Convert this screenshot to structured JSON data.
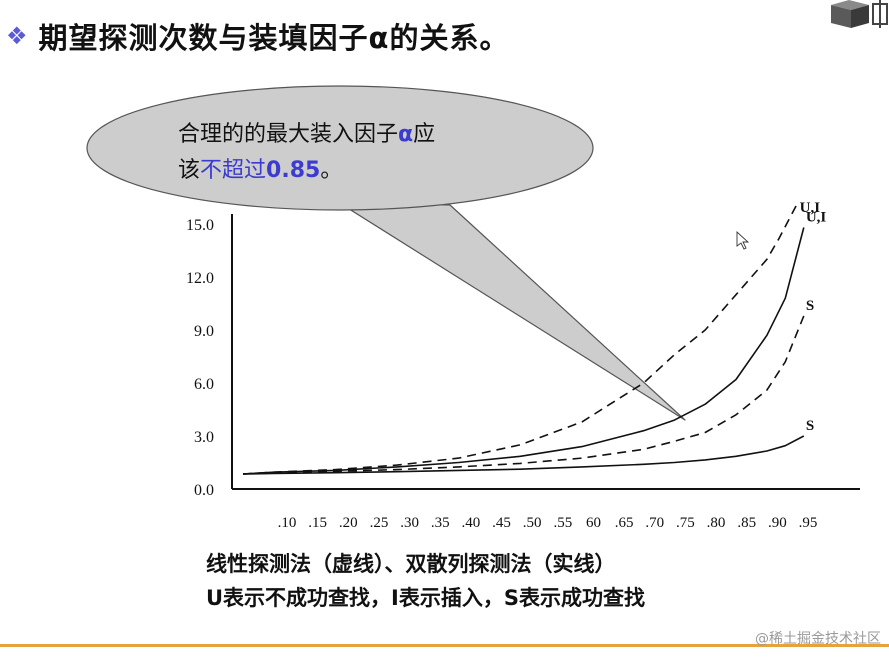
{
  "title": {
    "bullet": "❖",
    "text": "期望探测次数与装填因子α的关系。"
  },
  "callout": {
    "line1_pre": "合理的的最大装入因子",
    "line1_alpha": "α",
    "line1_post": "应",
    "line2_pre": "该",
    "line2_mid": "不超过",
    "line2_value": "0.85",
    "line2_post": "。"
  },
  "chart_data": {
    "type": "line",
    "x_ticks": [
      ".10",
      ".15",
      ".20",
      ".25",
      ".30",
      ".35",
      ".40",
      ".45",
      ".50",
      ".55",
      "60",
      ".65",
      ".70",
      ".75",
      ".80",
      ".85",
      ".90",
      ".95"
    ],
    "y_ticks": [
      "15.0",
      "12.0",
      "9.0",
      "6.0",
      "3.0",
      "0.0"
    ],
    "xlim": [
      0.05,
      0.97
    ],
    "ylim": [
      0,
      15
    ],
    "series": [
      {
        "name": "U,I",
        "style": "dashed",
        "x": [
          0.05,
          0.1,
          0.2,
          0.3,
          0.4,
          0.5,
          0.6,
          0.7,
          0.75,
          0.8,
          0.85,
          0.88,
          0.9,
          0.92,
          0.95
        ],
        "y": [
          0.85,
          0.95,
          1.1,
          1.35,
          1.75,
          2.5,
          3.8,
          6.0,
          7.6,
          9.0,
          11.0,
          12.2,
          13.0,
          14.2,
          16.2
        ]
      },
      {
        "name": "U,I",
        "style": "solid",
        "x": [
          0.05,
          0.1,
          0.2,
          0.3,
          0.4,
          0.5,
          0.6,
          0.7,
          0.75,
          0.8,
          0.85,
          0.9,
          0.93,
          0.96
        ],
        "y": [
          0.85,
          0.95,
          1.05,
          1.25,
          1.5,
          1.85,
          2.4,
          3.3,
          3.9,
          4.8,
          6.2,
          8.7,
          10.8,
          14.8
        ]
      },
      {
        "name": "S",
        "style": "dashed",
        "x": [
          0.05,
          0.1,
          0.2,
          0.3,
          0.4,
          0.5,
          0.6,
          0.7,
          0.75,
          0.8,
          0.85,
          0.9,
          0.93,
          0.96
        ],
        "y": [
          0.85,
          0.9,
          1.0,
          1.1,
          1.25,
          1.45,
          1.75,
          2.25,
          2.7,
          3.2,
          4.2,
          5.6,
          7.2,
          9.8
        ]
      },
      {
        "name": "S",
        "style": "solid",
        "x": [
          0.05,
          0.1,
          0.2,
          0.3,
          0.4,
          0.5,
          0.6,
          0.7,
          0.75,
          0.8,
          0.85,
          0.9,
          0.93,
          0.96
        ],
        "y": [
          0.85,
          0.88,
          0.92,
          0.98,
          1.05,
          1.12,
          1.25,
          1.4,
          1.5,
          1.65,
          1.85,
          2.15,
          2.45,
          3.0
        ]
      }
    ]
  },
  "caption": {
    "line1": "线性探测法（虚线）、双散列探测法（实线）",
    "line2": "U表示不成功查找，I表示插入，S表示成功查找"
  },
  "watermark": "@稀土掘金技术社区",
  "colors": {
    "bubble_fill": "#cdcdcd",
    "accent_blue": "#3b3bd0",
    "bottom_rule": "#e8a23c"
  }
}
